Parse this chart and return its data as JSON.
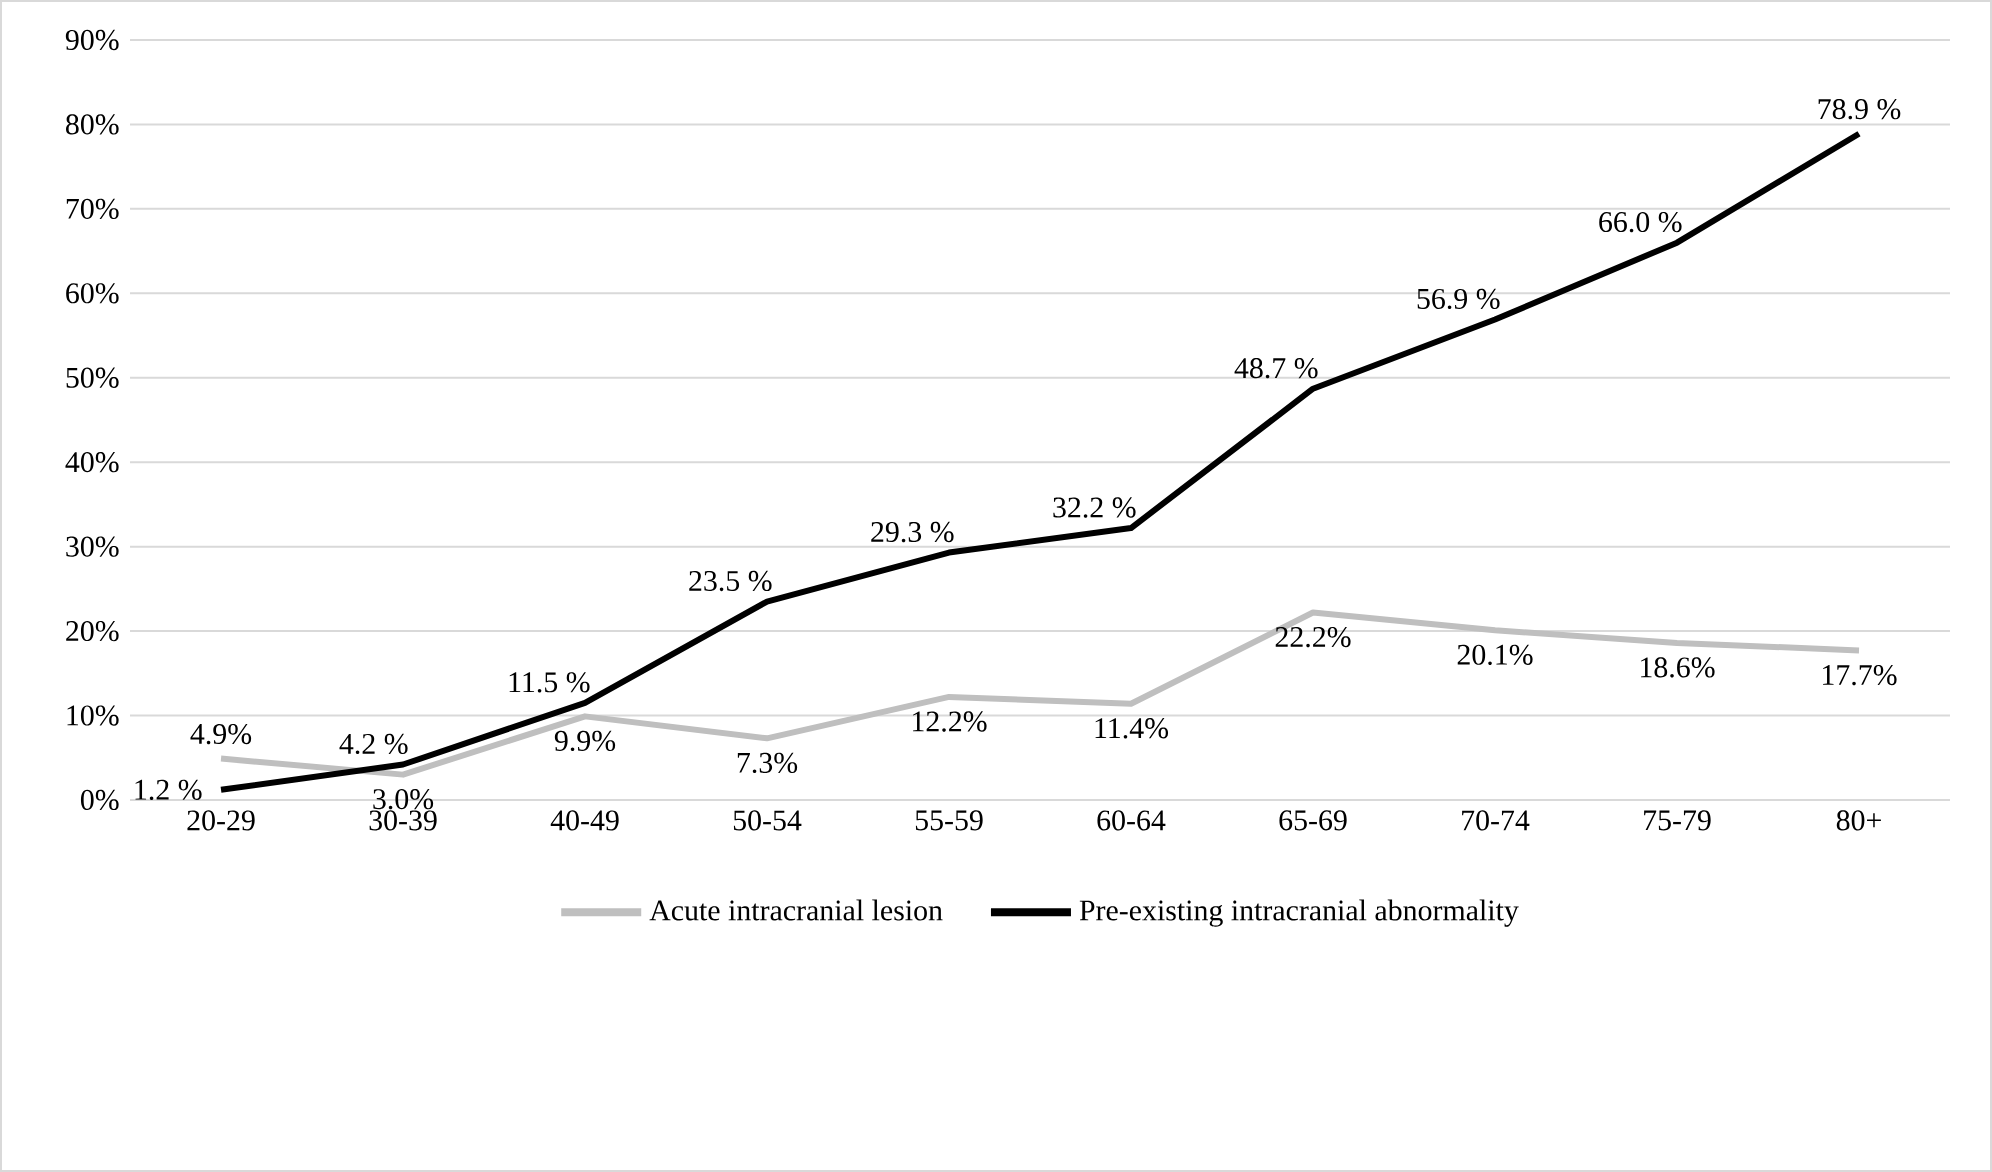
{
  "chart_data": {
    "type": "line",
    "categories": [
      "20-29",
      "30-39",
      "40-49",
      "50-54",
      "55-59",
      "60-64",
      "65-69",
      "70-74",
      "75-79",
      "80+"
    ],
    "series": [
      {
        "name": "Acute intracranial lesion",
        "color": "#bfbfbf",
        "values": [
          4.9,
          3.0,
          9.9,
          7.3,
          12.2,
          11.4,
          22.2,
          20.1,
          18.6,
          17.7
        ],
        "value_labels": [
          "4.9%",
          "3.0%",
          "9.9%",
          "7.3%",
          "12.2%",
          "11.4%",
          "22.2%",
          "20.1%",
          "18.6%",
          "17.7%"
        ]
      },
      {
        "name": "Pre-existing intracranial abnormality",
        "color": "#000000",
        "values": [
          1.2,
          4.2,
          11.5,
          23.5,
          29.3,
          32.2,
          48.7,
          56.9,
          66.0,
          78.9
        ],
        "value_labels": [
          "1.2 %",
          "4.2 %",
          "11.5 %",
          "23.5 %",
          "29.3 %",
          "32.2 %",
          "48.7 %",
          "56.9 %",
          "66.0 %",
          "78.9 %"
        ]
      }
    ],
    "ylim": [
      0,
      90
    ],
    "yticks": [
      {
        "value": 0,
        "label": "0%"
      },
      {
        "value": 10,
        "label": "10%"
      },
      {
        "value": 20,
        "label": "20%"
      },
      {
        "value": 30,
        "label": "30%"
      },
      {
        "value": 40,
        "label": "40%"
      },
      {
        "value": 50,
        "label": "50%"
      },
      {
        "value": 60,
        "label": "60%"
      },
      {
        "value": 70,
        "label": "70%"
      },
      {
        "value": 80,
        "label": "80%"
      },
      {
        "value": 90,
        "label": "90%"
      }
    ],
    "grid": "y",
    "legend": "bottom",
    "marker": "none",
    "line_style": "solid"
  }
}
